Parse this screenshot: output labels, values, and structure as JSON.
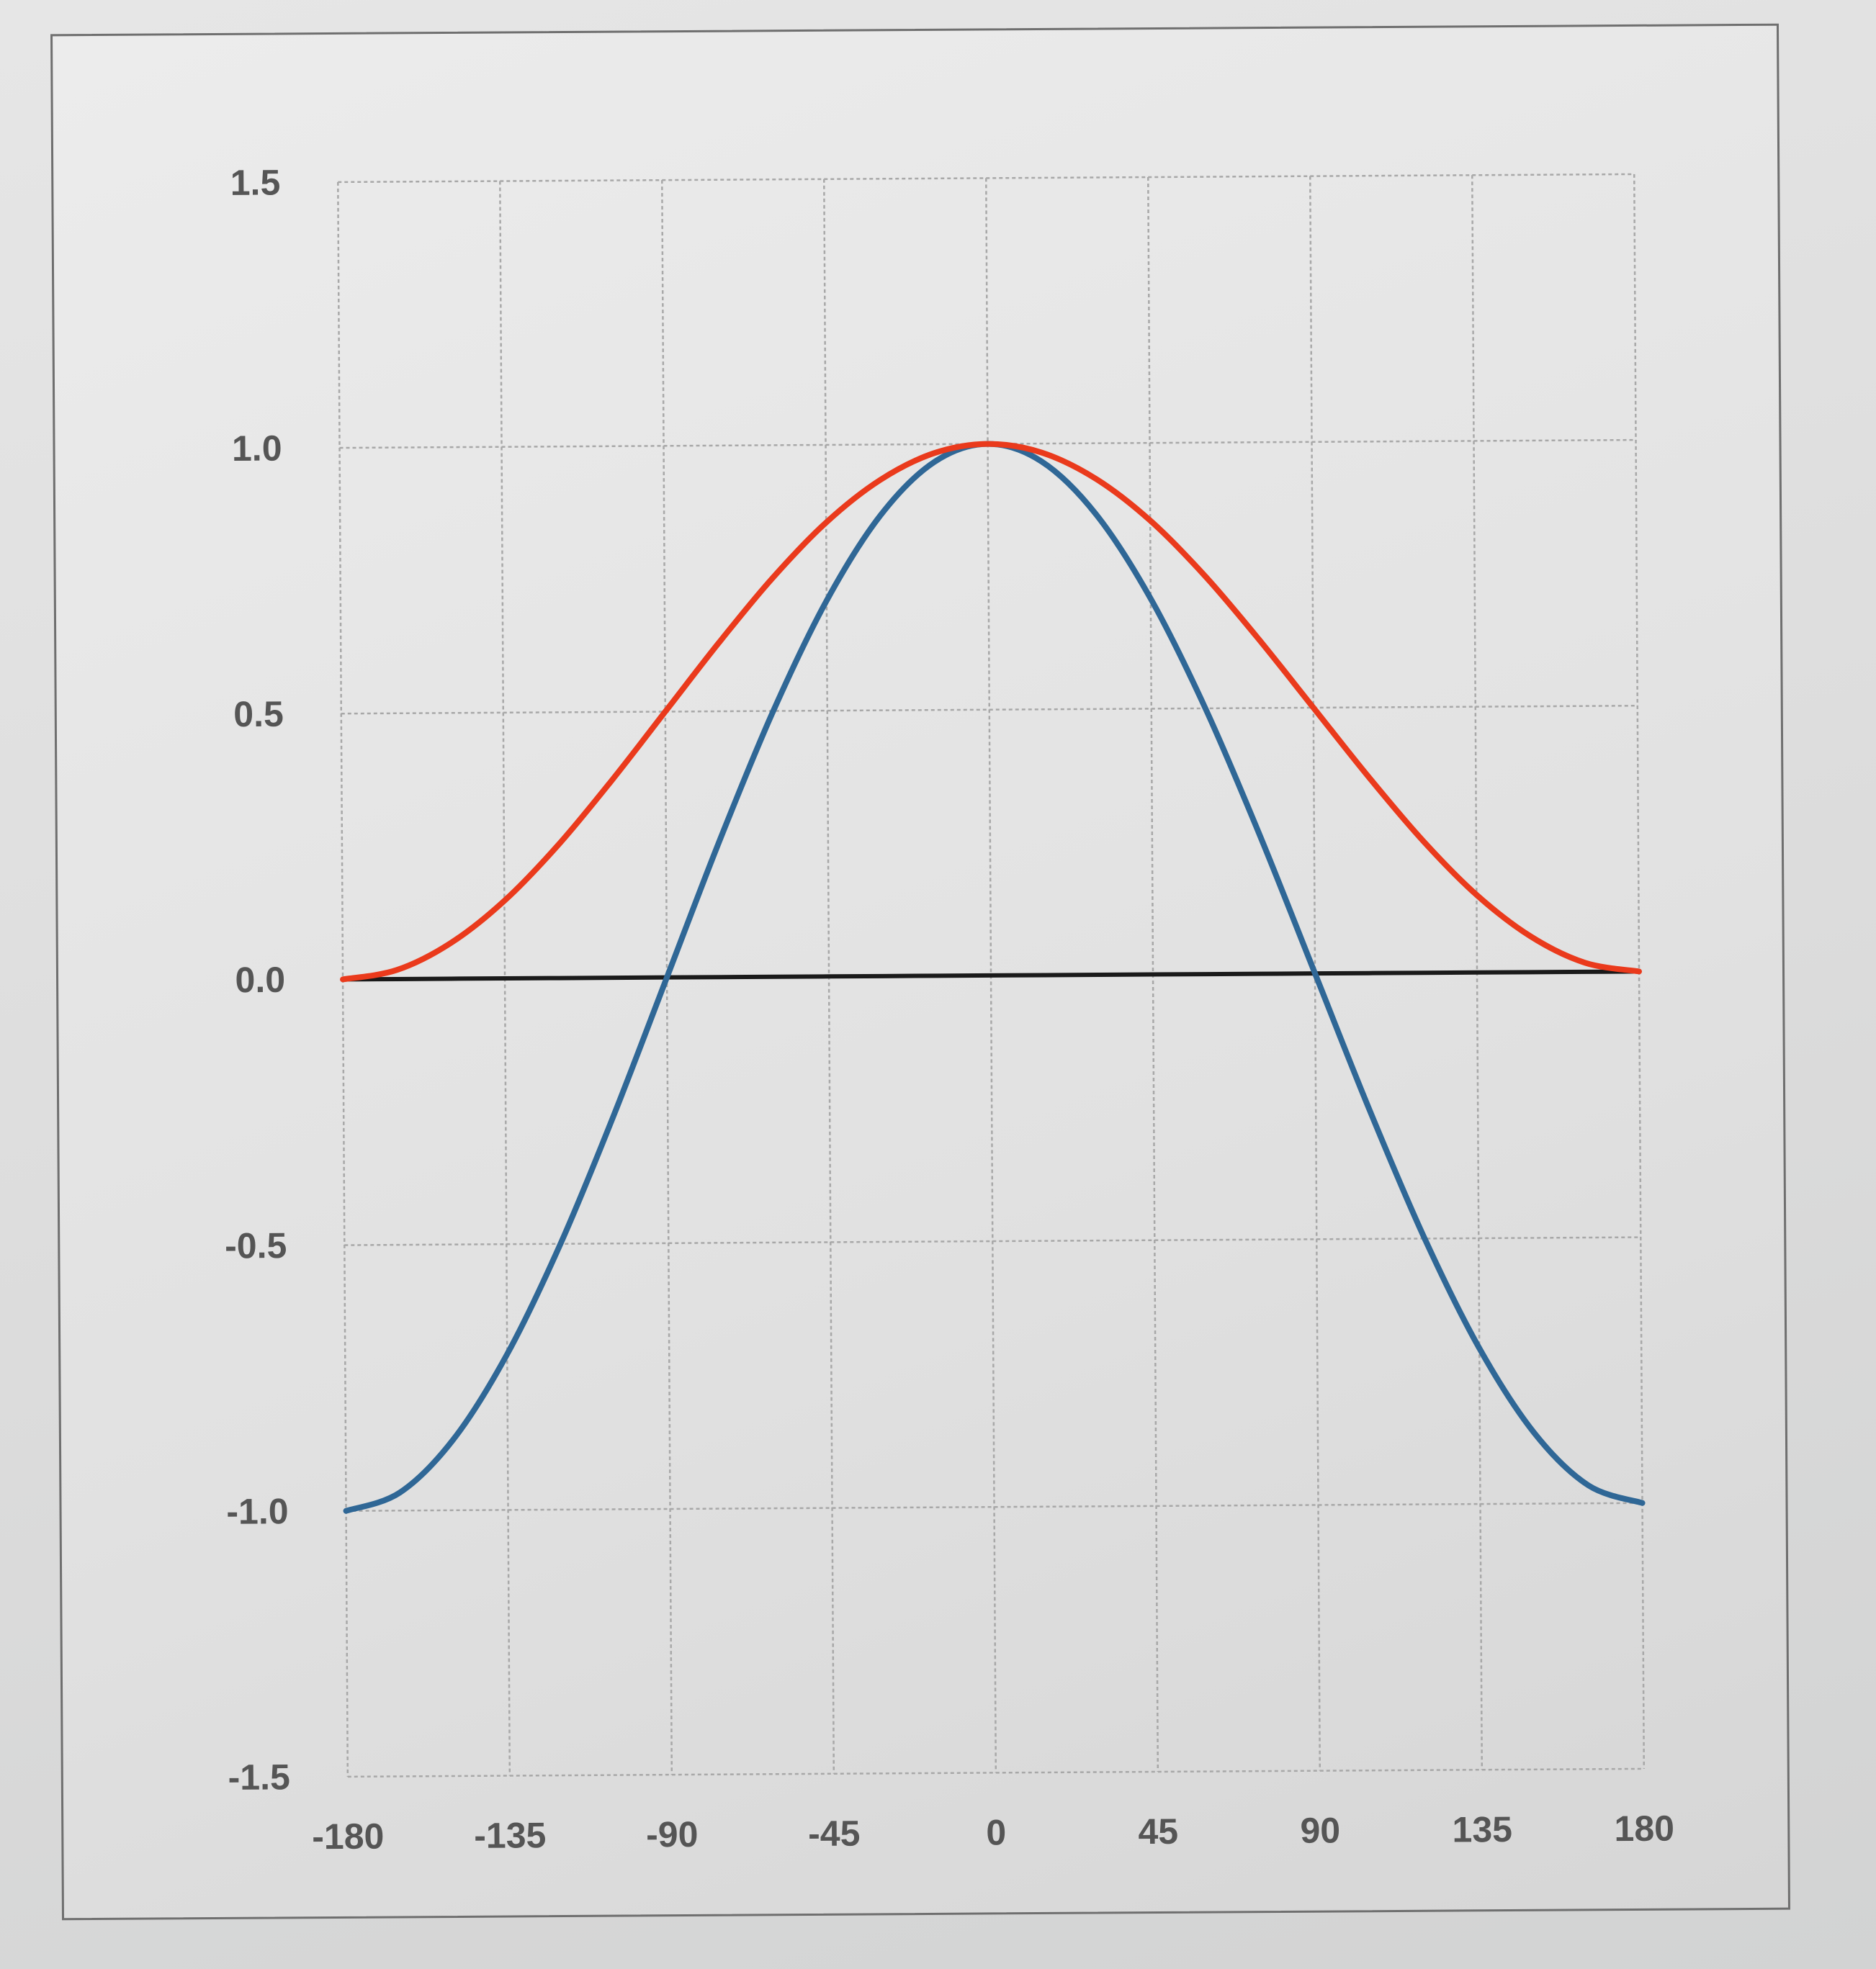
{
  "chart_data": {
    "type": "line",
    "title": "",
    "xlabel": "",
    "ylabel": "",
    "xlim": [
      -180,
      180
    ],
    "ylim": [
      -1.5,
      1.5
    ],
    "x_ticks": [
      -180,
      -135,
      -90,
      -45,
      0,
      45,
      90,
      135,
      180
    ],
    "x_tick_labels": [
      "-180",
      "-135",
      "-90",
      "-45",
      "0",
      "45",
      "90",
      "135",
      "180"
    ],
    "y_ticks": [
      1.5,
      1.0,
      0.5,
      0.0,
      -0.5,
      -1.0,
      -1.5
    ],
    "y_tick_labels": [
      "1.5",
      "1.0",
      "0.5",
      "0.0",
      "-0.5",
      "-1.0",
      "-1.5"
    ],
    "grid": true,
    "legend": "none",
    "x": [
      -180,
      -165,
      -150,
      -135,
      -120,
      -105,
      -90,
      -75,
      -60,
      -45,
      -30,
      -15,
      0,
      15,
      30,
      45,
      60,
      75,
      90,
      105,
      120,
      135,
      150,
      165,
      180
    ],
    "series": [
      {
        "color": "#2f6796",
        "values": [
          -1.0,
          -0.966,
          -0.866,
          -0.707,
          -0.5,
          -0.259,
          0.0,
          0.259,
          0.5,
          0.707,
          0.866,
          0.966,
          1.0,
          0.966,
          0.866,
          0.707,
          0.5,
          0.259,
          0.0,
          -0.259,
          -0.5,
          -0.707,
          -0.866,
          -0.966,
          -1.0
        ]
      },
      {
        "color": "#ea3a1c",
        "values": [
          0.0,
          0.017,
          0.067,
          0.146,
          0.25,
          0.371,
          0.5,
          0.629,
          0.75,
          0.854,
          0.933,
          0.983,
          1.0,
          0.983,
          0.933,
          0.854,
          0.75,
          0.629,
          0.5,
          0.371,
          0.25,
          0.146,
          0.067,
          0.017,
          0.0
        ]
      },
      {
        "color": "#1a1a1a",
        "values": [
          0.0,
          0.0,
          0.0,
          0.0,
          0.0,
          0.0,
          0.0,
          0.0,
          0.0,
          0.0,
          0.0,
          0.0,
          0.0,
          0.0,
          0.0,
          0.0,
          0.0,
          0.0,
          0.0,
          0.0,
          0.0,
          0.0,
          0.0,
          0.0,
          0.0
        ]
      }
    ]
  }
}
